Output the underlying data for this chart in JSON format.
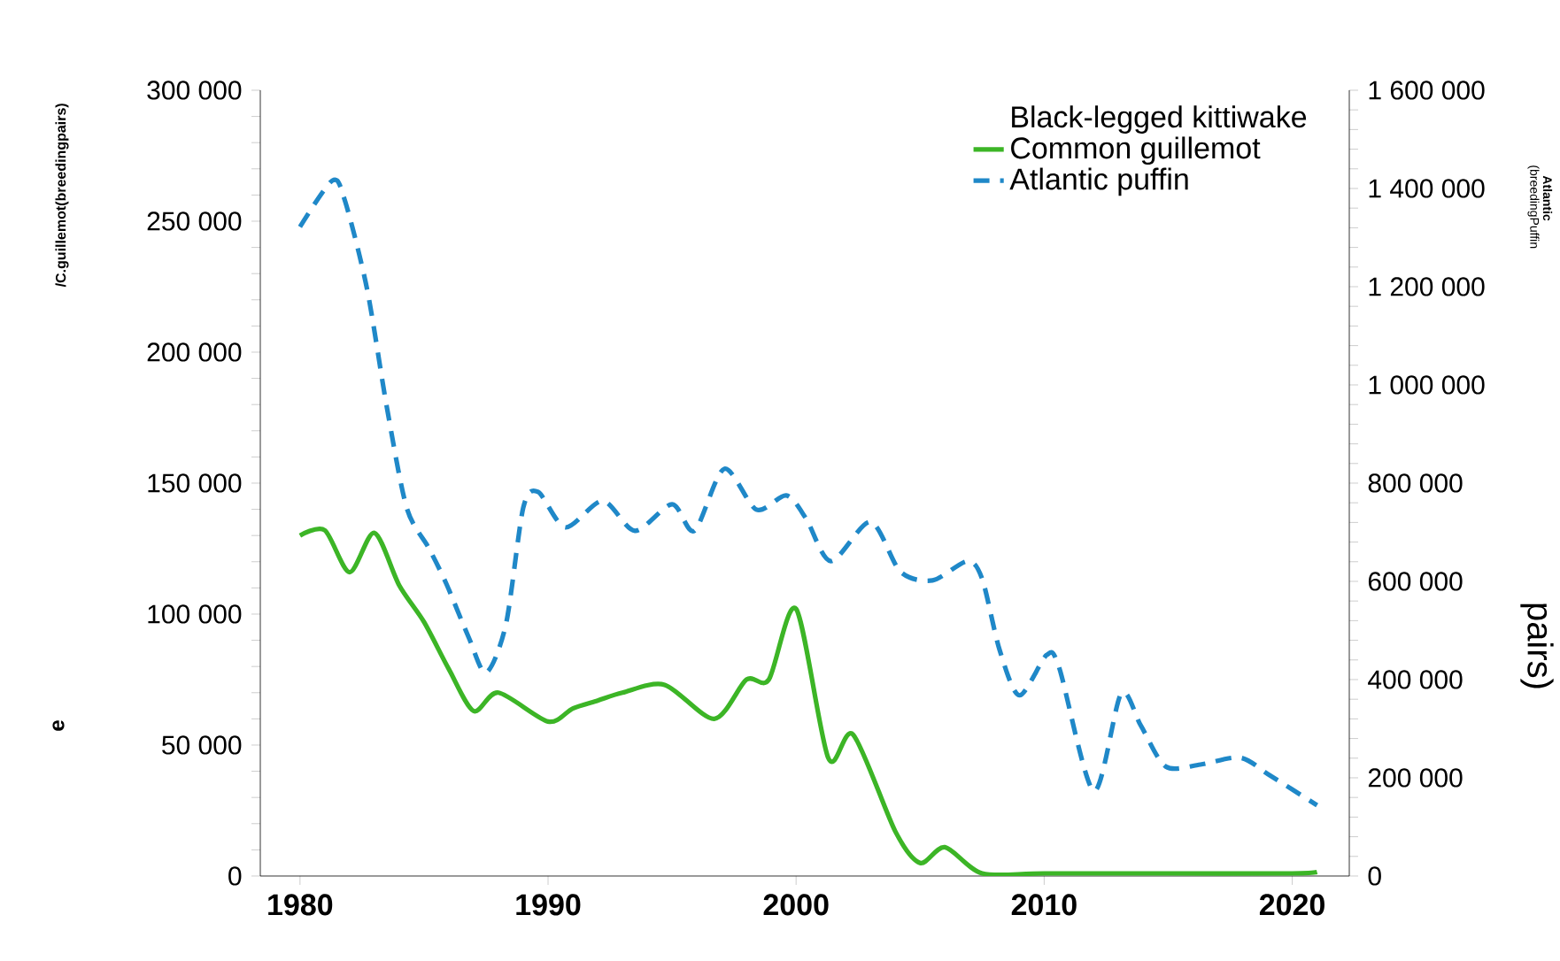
{
  "chart_data": {
    "type": "line",
    "y2label": "pairs)",
    "annotations": [
      "/C.guillemot(breedingpairs)",
      "e",
      "(breedingPuffin",
      "Atlantic"
    ],
    "legend": "top right",
    "grid": false,
    "xlim": [
      1978.4,
      2022.3
    ],
    "xticks": [
      1980,
      1990,
      2000,
      2010,
      2020
    ],
    "ylim": [
      0,
      300000
    ],
    "yticks": [
      {
        "value": 0,
        "label": "0"
      },
      {
        "value": 50000,
        "label": "50 000"
      },
      {
        "value": 100000,
        "label": "100 000"
      },
      {
        "value": 150000,
        "label": "150 000"
      },
      {
        "value": 200000,
        "label": "200 000"
      },
      {
        "value": 250000,
        "label": "250 000"
      },
      {
        "value": 300000,
        "label": "300 000"
      }
    ],
    "y2lim": [
      0,
      1600000
    ],
    "y2ticks": [
      {
        "value": 0,
        "label": "0"
      },
      {
        "value": 200000,
        "label": "200 000"
      },
      {
        "value": 400000,
        "label": "400 000"
      },
      {
        "value": 600000,
        "label": "600 000"
      },
      {
        "value": 800000,
        "label": "800 000"
      },
      {
        "value": 1000000,
        "label": "1 000 000"
      },
      {
        "value": 1200000,
        "label": "1 200 000"
      },
      {
        "value": 1400000,
        "label": "1 400 000"
      },
      {
        "value": 1600000,
        "label": "1 600 000"
      }
    ],
    "series": [
      {
        "name": "Black-legged kittiwake"
      },
      {
        "name": "Common guillemot",
        "color": "#3cb526",
        "line_style": "solid",
        "x": [
          1980,
          1981,
          1982,
          1983,
          1984,
          1985,
          1986,
          1987,
          1988,
          1990,
          1991,
          1992,
          1993,
          1994.7,
          1996.7,
          1998,
          1998.9,
          2000,
          2001.3,
          2002.3,
          2004,
          2005,
          2006,
          2007.5,
          2010,
          2015,
          2020,
          2021
        ],
        "values": [
          130000,
          132000,
          116000,
          131000,
          111000,
          97000,
          79000,
          63000,
          70000,
          59000,
          64000,
          67000,
          70000,
          73000,
          60000,
          75000,
          75000,
          102000,
          45000,
          54000,
          17000,
          5000,
          11000,
          1000,
          1000,
          1000,
          1000,
          1500
        ]
      },
      {
        "name": "Atlantic puffin",
        "color": "#1f88c8",
        "line_style": "dashed",
        "axis": "y2",
        "x": [
          1980,
          1981.3,
          1981.8,
          1982.7,
          1983.5,
          1984.3,
          1985.2,
          1985.9,
          1986.8,
          1987.5,
          1988.3,
          1989,
          1989.6,
          1990.7,
          1992.2,
          1993.5,
          1995,
          1995.9,
          1997.1,
          1998.4,
          1999.6,
          2000.4,
          2001.4,
          2003,
          2004.2,
          2005.5,
          2006.9,
          2007.5,
          2008.2,
          2009,
          2010.1,
          2010.6,
          2012,
          2013.1,
          2013.9,
          2014.9,
          2016.3,
          2017.9,
          2019.1,
          2021
        ],
        "values": [
          1322000,
          1416000,
          1377000,
          1196000,
          955000,
          750000,
          667000,
          595000,
          486000,
          414000,
          512000,
          750000,
          782000,
          710000,
          764000,
          703000,
          757000,
          703000,
          829000,
          746000,
          775000,
          728000,
          641000,
          721000,
          620000,
          602000,
          641000,
          605000,
          461000,
          368000,
          450000,
          425000,
          173000,
          371000,
          306000,
          223000,
          227000,
          241000,
          205000,
          144000
        ]
      }
    ]
  }
}
